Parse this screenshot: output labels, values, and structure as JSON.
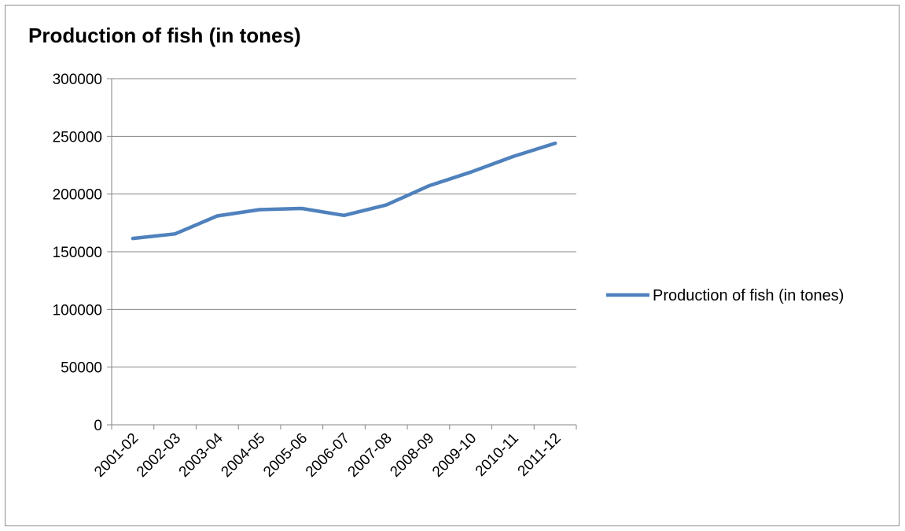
{
  "chart_data": {
    "type": "line",
    "title": "Production of fish (in tones)",
    "xlabel": "",
    "ylabel": "",
    "categories": [
      "2001-02",
      "2002-03",
      "2003-04",
      "2004-05",
      "2005-06",
      "2006-07",
      "2007-08",
      "2008-09",
      "2009-10",
      "2010-11",
      "2011-12"
    ],
    "series": [
      {
        "name": "Production of fish (in tones)",
        "color": "#4f81bd",
        "values": [
          161500,
          165500,
          181000,
          186500,
          187500,
          181500,
          190500,
          207000,
          219000,
          232500,
          244000
        ]
      }
    ],
    "yticks": [
      0,
      50000,
      100000,
      150000,
      200000,
      250000,
      300000
    ],
    "ylim": [
      0,
      300000
    ],
    "grid": true,
    "legend": "right"
  }
}
